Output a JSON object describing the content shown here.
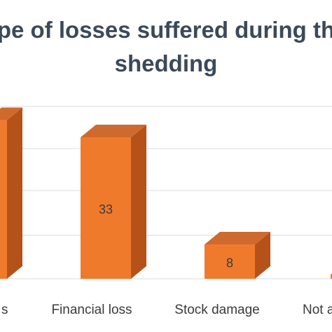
{
  "chart_data": {
    "type": "bar",
    "title_line1": "pe of losses suffered during th",
    "title_line2": "shedding",
    "categories": [
      "s",
      "Financial loss",
      "Stock damage",
      "Not a"
    ],
    "values": [
      null,
      33,
      8,
      null
    ],
    "data_labels": [
      "",
      "33",
      "8",
      ""
    ],
    "xlabel": "",
    "ylabel": "",
    "grid": true,
    "bar_3d": true,
    "colors": {
      "bar_front": "#f07a2c",
      "bar_front_light": "#f3924c",
      "bar_side": "#b5521a",
      "bar_top": "#cf6a2e",
      "grid": "#d9d9d9",
      "title": "#3b4a5a",
      "text": "#3b3b3b"
    }
  }
}
